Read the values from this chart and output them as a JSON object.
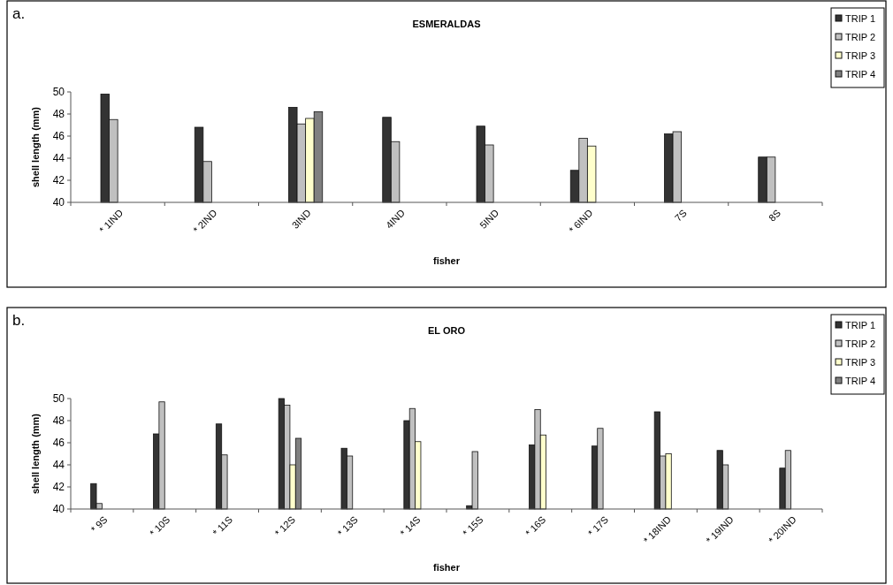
{
  "chart_data": [
    {
      "type": "bar",
      "title": "ESMERALDAS",
      "annotations": [
        "a."
      ],
      "xlabel": "fisher",
      "ylabel": "shell length (mm)",
      "categories": [
        "* 1IND",
        "* 2IND",
        "3IND",
        "4IND",
        "5IND",
        "* 6IND",
        "7S",
        "8S"
      ],
      "ylim": [
        40,
        50
      ],
      "yticks": [
        40,
        42,
        44,
        46,
        48,
        50
      ],
      "legend": "top right",
      "series": [
        {
          "name": "TRIP 1",
          "color": "#333333",
          "values": [
            49.8,
            46.8,
            48.6,
            47.7,
            46.9,
            42.9,
            46.2,
            44.1
          ]
        },
        {
          "name": "TRIP 2",
          "color": "#c0c0c0",
          "values": [
            47.5,
            43.7,
            47.1,
            45.5,
            45.2,
            45.8,
            46.4,
            44.1
          ]
        },
        {
          "name": "TRIP 3",
          "color": "#ffffcc",
          "values": [
            null,
            null,
            47.6,
            null,
            null,
            45.1,
            null,
            null
          ]
        },
        {
          "name": "TRIP 4",
          "color": "#808080",
          "values": [
            null,
            null,
            48.2,
            null,
            null,
            null,
            null,
            null
          ]
        }
      ]
    },
    {
      "type": "bar",
      "title": "EL ORO",
      "annotations": [
        "b."
      ],
      "xlabel": "fisher",
      "ylabel": "shell length (mm)",
      "categories": [
        "* 9S",
        "* 10S",
        "* 11S",
        "* 12S",
        "* 13S",
        "* 14S",
        "* 15S",
        "* 16S",
        "* 17S",
        "* 18IND",
        "* 19IND",
        "* 20IND"
      ],
      "ylim": [
        40,
        50
      ],
      "yticks": [
        40,
        42,
        44,
        46,
        48,
        50
      ],
      "legend": "top right",
      "series": [
        {
          "name": "TRIP 1",
          "color": "#333333",
          "values": [
            42.3,
            46.8,
            47.7,
            50.0,
            45.5,
            48.0,
            40.3,
            45.8,
            45.7,
            48.8,
            45.3,
            43.7
          ]
        },
        {
          "name": "TRIP 2",
          "color": "#c0c0c0",
          "values": [
            40.5,
            49.7,
            44.9,
            49.4,
            44.8,
            49.1,
            45.2,
            49.0,
            47.3,
            44.8,
            44.0,
            45.3
          ]
        },
        {
          "name": "TRIP 3",
          "color": "#ffffcc",
          "values": [
            null,
            null,
            null,
            44.0,
            null,
            46.1,
            null,
            46.7,
            null,
            45.0,
            null,
            null
          ]
        },
        {
          "name": "TRIP 4",
          "color": "#808080",
          "values": [
            null,
            null,
            null,
            46.4,
            null,
            null,
            null,
            null,
            null,
            null,
            null,
            null
          ]
        }
      ]
    }
  ]
}
